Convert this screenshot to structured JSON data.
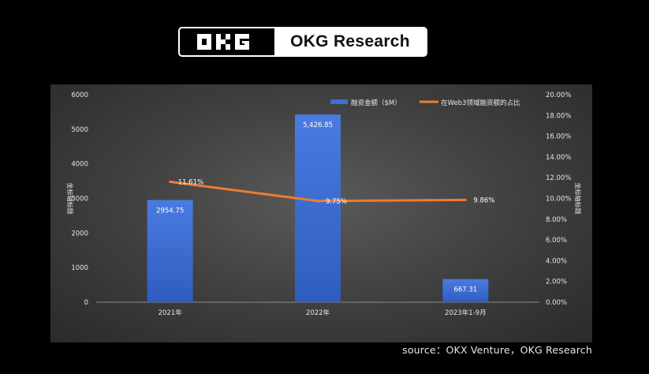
{
  "brand": {
    "name": "OKG Research",
    "mark": "OKG"
  },
  "source": "source：OKX Venture，OKG Research",
  "chart_data": {
    "type": "bar",
    "categories": [
      "2021年",
      "2022年",
      "2023年1-9月"
    ],
    "series": [
      {
        "name": "融资金额（$M）",
        "type": "bar",
        "axis": "left",
        "color": "#3f6fd0",
        "values": [
          2954.75,
          5426.85,
          667.31
        ],
        "labels": [
          "2954.75",
          "5,426.85",
          "667.31"
        ]
      },
      {
        "name": "在Web3领域融资额的占比",
        "type": "line",
        "axis": "right",
        "color": "#ed7d31",
        "values": [
          11.61,
          9.75,
          9.86
        ],
        "labels": [
          "11.61%",
          "9.75%",
          "9.86%"
        ]
      }
    ],
    "y_left": {
      "range": [
        0,
        6000
      ],
      "ticks": [
        "0",
        "1000",
        "2000",
        "3000",
        "4000",
        "5000",
        "6000"
      ],
      "label": "坐标轴标题"
    },
    "y_right": {
      "range": [
        0,
        20
      ],
      "ticks": [
        "0.00%",
        "2.00%",
        "4.00%",
        "6.00%",
        "8.00%",
        "10.00%",
        "12.00%",
        "14.00%",
        "16.00%",
        "18.00%",
        "20.00%"
      ],
      "label": "坐标轴标题"
    },
    "legend": "top-right",
    "grid": false
  }
}
